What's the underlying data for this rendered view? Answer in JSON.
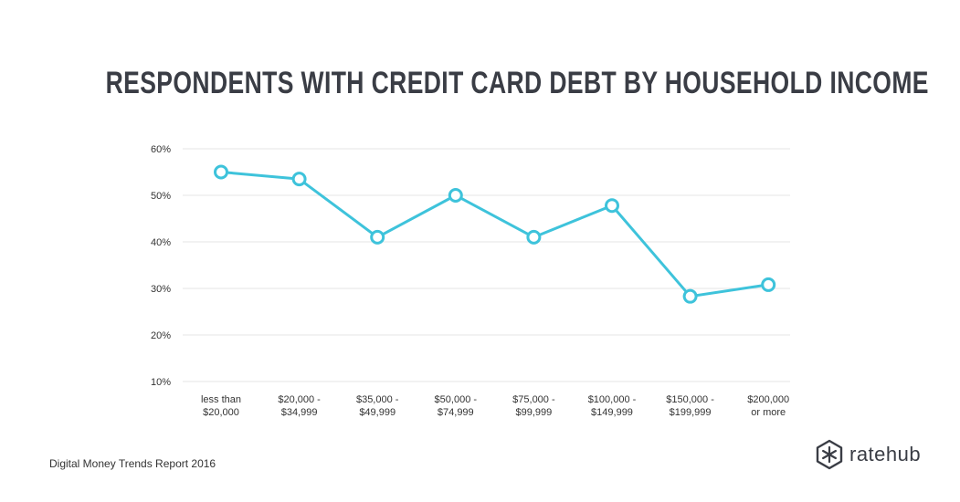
{
  "title": "RESPONDENTS WITH CREDIT CARD DEBT BY HOUSEHOLD INCOME",
  "footer": "Digital Money Trends Report 2016",
  "brand": {
    "name": "ratehub",
    "icon": "ratehub-logo-icon"
  },
  "colors": {
    "line": "#3ec3db",
    "grid": "#e6e6e6",
    "text": "#333333",
    "title": "#3a3d45"
  },
  "chart_data": {
    "type": "line",
    "title": "RESPONDENTS WITH CREDIT CARD DEBT BY HOUSEHOLD INCOME",
    "categories": [
      [
        "less than",
        "$20,000"
      ],
      [
        "$20,000 -",
        "$34,999"
      ],
      [
        "$35,000 -",
        "$49,999"
      ],
      [
        "$50,000 -",
        "$74,999"
      ],
      [
        "$75,000 -",
        "$99,999"
      ],
      [
        "$100,000 -",
        "$149,999"
      ],
      [
        "$150,000 -",
        "$199,999"
      ],
      [
        "$200,000",
        "or more"
      ]
    ],
    "values": [
      55,
      53.5,
      41,
      50,
      41,
      47.8,
      28.3,
      30.8
    ],
    "ylim": [
      10,
      60
    ],
    "yticks": [
      10,
      20,
      30,
      40,
      50,
      60
    ],
    "ytick_labels": [
      "10%",
      "20%",
      "30%",
      "40%",
      "50%",
      "60%"
    ],
    "grid": true,
    "legend": "none",
    "xlabel": "",
    "ylabel": ""
  }
}
